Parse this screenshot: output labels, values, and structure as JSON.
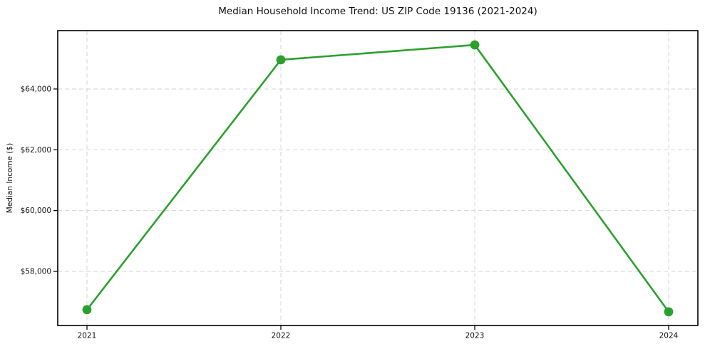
{
  "figure": {
    "background": "#ffffff"
  },
  "chart_data": {
    "type": "line",
    "title": "Median Household Income Trend: US ZIP Code 19136 (2021-2024)",
    "xlabel": "",
    "ylabel": "Median Income ($)",
    "categories": [
      "2021",
      "2022",
      "2023",
      "2024"
    ],
    "values": [
      56740,
      64960,
      65450,
      56670
    ],
    "y_ticks": [
      58000,
      60000,
      62000,
      64000
    ],
    "y_tick_labels": [
      "$58,000",
      "$60,000",
      "$62,000",
      "$64,000"
    ],
    "ylim": [
      56220,
      65920
    ],
    "grid": true,
    "grid_style": "dashed",
    "legend": "none",
    "colors": {
      "line": "#2ca02c",
      "marker": "#2ca02c",
      "grid": "#d6d6d6",
      "spine": "#000000",
      "text": "#111111"
    },
    "marker": "circle"
  }
}
